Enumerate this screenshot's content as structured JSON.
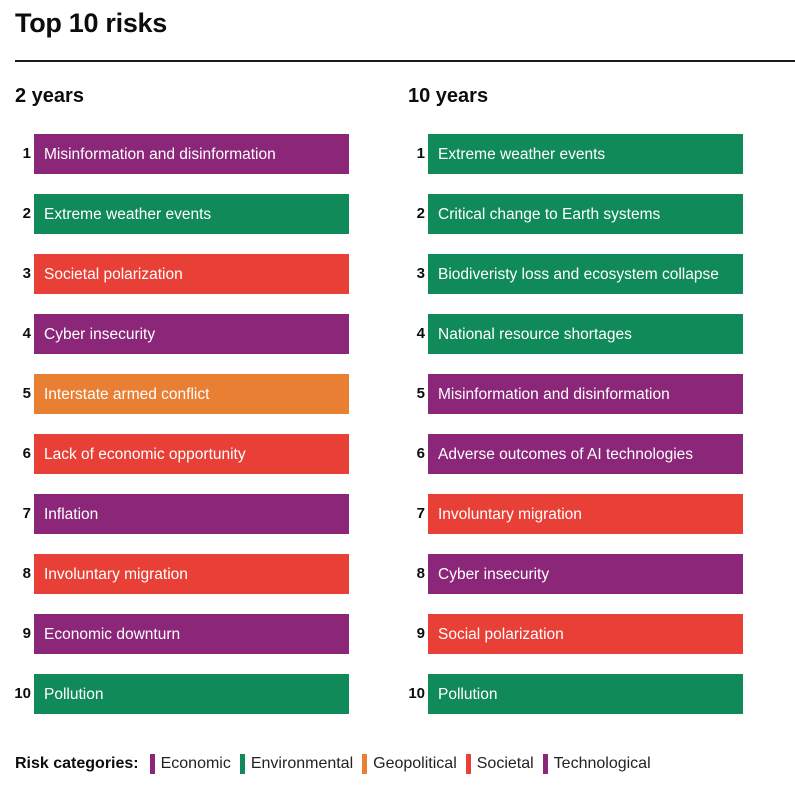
{
  "title": "Top 10 risks",
  "colors": {
    "Economic": "#8B2679",
    "Environmental": "#0F8A58",
    "Geopolitical": "#E87F33",
    "Societal": "#E83F36",
    "Technological": "#8B2679"
  },
  "columns": [
    {
      "heading": "2 years",
      "items": [
        {
          "rank": "1",
          "label": "Misinformation and disinformation",
          "category": "Technological"
        },
        {
          "rank": "2",
          "label": "Extreme weather events",
          "category": "Environmental"
        },
        {
          "rank": "3",
          "label": "Societal polarization",
          "category": "Societal"
        },
        {
          "rank": "4",
          "label": "Cyber insecurity",
          "category": "Technological"
        },
        {
          "rank": "5",
          "label": "Interstate armed conflict",
          "category": "Geopolitical"
        },
        {
          "rank": "6",
          "label": "Lack of economic opportunity",
          "category": "Societal"
        },
        {
          "rank": "7",
          "label": "Inflation",
          "category": "Economic"
        },
        {
          "rank": "8",
          "label": "Involuntary migration",
          "category": "Societal"
        },
        {
          "rank": "9",
          "label": "Economic downturn",
          "category": "Economic"
        },
        {
          "rank": "10",
          "label": "Pollution",
          "category": "Environmental"
        }
      ]
    },
    {
      "heading": "10 years",
      "items": [
        {
          "rank": "1",
          "label": "Extreme weather events",
          "category": "Environmental"
        },
        {
          "rank": "2",
          "label": "Critical change to Earth systems",
          "category": "Environmental"
        },
        {
          "rank": "3",
          "label": "Biodiveristy loss and ecosystem collapse",
          "category": "Environmental"
        },
        {
          "rank": "4",
          "label": "National resource shortages",
          "category": "Environmental"
        },
        {
          "rank": "5",
          "label": "Misinformation and disinformation",
          "category": "Technological"
        },
        {
          "rank": "6",
          "label": "Adverse outcomes of AI technologies",
          "category": "Technological"
        },
        {
          "rank": "7",
          "label": "Involuntary migration",
          "category": "Societal"
        },
        {
          "rank": "8",
          "label": "Cyber insecurity",
          "category": "Technological"
        },
        {
          "rank": "9",
          "label": "Social polarization",
          "category": "Societal"
        },
        {
          "rank": "10",
          "label": "Pollution",
          "category": "Environmental"
        }
      ]
    }
  ],
  "legend": {
    "title": "Risk categories:",
    "items": [
      {
        "label": "Economic",
        "color": "#8B2679"
      },
      {
        "label": "Environmental",
        "color": "#0F8A58"
      },
      {
        "label": "Geopolitical",
        "color": "#E87F33"
      },
      {
        "label": "Societal",
        "color": "#E83F36"
      },
      {
        "label": "Technological",
        "color": "#8B2679"
      }
    ]
  },
  "chart_data": {
    "type": "table",
    "title": "Top 10 risks",
    "columns": [
      "Rank",
      "2 years",
      "10 years"
    ],
    "rows": [
      [
        "1",
        "Misinformation and disinformation (Technological)",
        "Extreme weather events (Environmental)"
      ],
      [
        "2",
        "Extreme weather events (Environmental)",
        "Critical change to Earth systems (Environmental)"
      ],
      [
        "3",
        "Societal polarization (Societal)",
        "Biodiveristy loss and ecosystem collapse (Environmental)"
      ],
      [
        "4",
        "Cyber insecurity (Technological)",
        "National resource shortages (Environmental)"
      ],
      [
        "5",
        "Interstate armed conflict (Geopolitical)",
        "Misinformation and disinformation (Technological)"
      ],
      [
        "6",
        "Lack of economic opportunity (Societal)",
        "Adverse outcomes of AI technologies (Technological)"
      ],
      [
        "7",
        "Inflation (Economic)",
        "Involuntary migration (Societal)"
      ],
      [
        "8",
        "Involuntary migration (Societal)",
        "Cyber insecurity (Technological)"
      ],
      [
        "9",
        "Economic downturn (Economic)",
        "Social polarization (Societal)"
      ],
      [
        "10",
        "Pollution (Environmental)",
        "Pollution (Environmental)"
      ]
    ],
    "legend": [
      "Economic",
      "Environmental",
      "Geopolitical",
      "Societal",
      "Technological"
    ],
    "legend_position": "bottom"
  }
}
